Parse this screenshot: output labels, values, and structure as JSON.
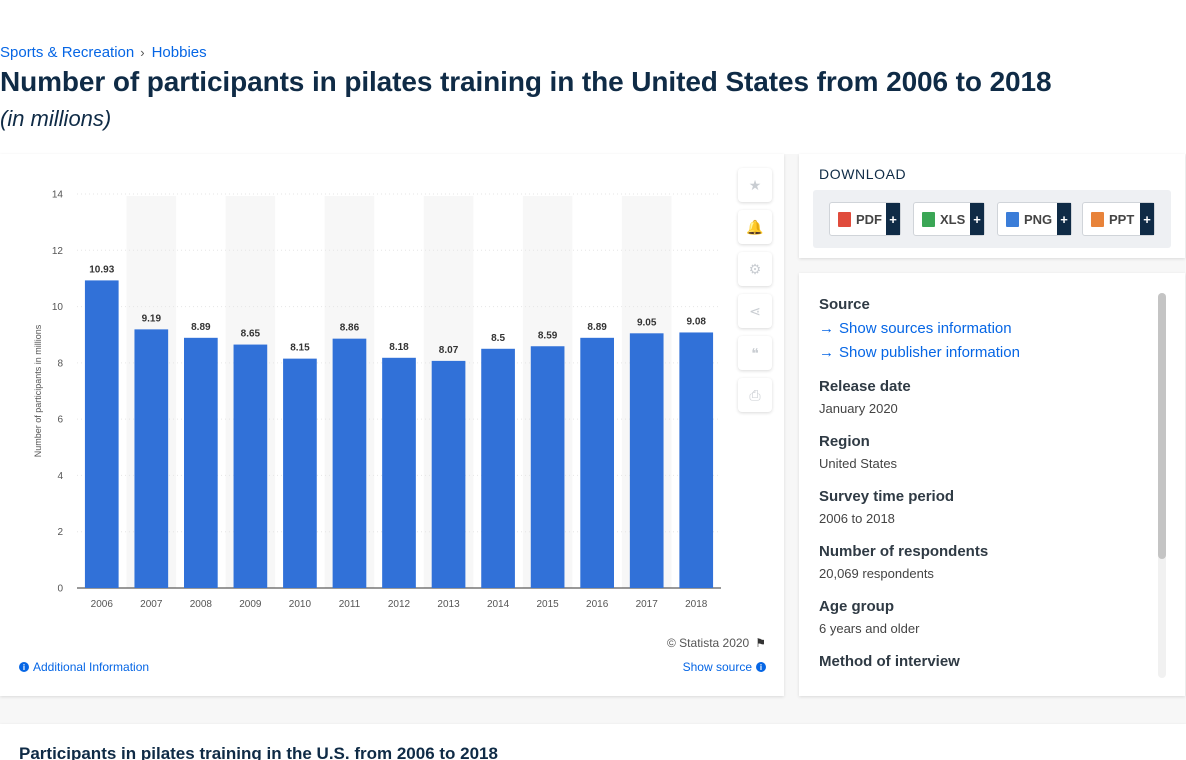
{
  "breadcrumb": {
    "items": [
      "Sports & Recreation",
      "Hobbies"
    ],
    "separator": "›"
  },
  "page": {
    "title": "Number of participants in pilates training in the United States from 2006 to 2018",
    "subtitle": "(in millions)"
  },
  "chart_data": {
    "type": "bar",
    "categories": [
      "2006",
      "2007",
      "2008",
      "2009",
      "2010",
      "2011",
      "2012",
      "2013",
      "2014",
      "2015",
      "2016",
      "2017",
      "2018"
    ],
    "values": [
      10.93,
      9.19,
      8.89,
      8.65,
      8.15,
      8.86,
      8.18,
      8.07,
      8.5,
      8.59,
      8.89,
      9.05,
      9.08
    ],
    "value_labels": [
      "10.93",
      "9.19",
      "8.89",
      "8.65",
      "8.15",
      "8.86",
      "8.18",
      "8.07",
      "8.5",
      "8.59",
      "8.89",
      "9.05",
      "9.08"
    ],
    "ylabel": "Number of participants in millions",
    "xlabel": "",
    "ylim": [
      0,
      14
    ],
    "yticks": [
      0,
      2,
      4,
      6,
      8,
      10,
      12,
      14
    ],
    "bar_color": "#3171d8",
    "grid": false
  },
  "chart_footer": {
    "credit": "© Statista 2020",
    "additional_info": "Additional Information",
    "show_source": "Show source"
  },
  "tools": [
    {
      "icon": "star-icon",
      "glyph": "★"
    },
    {
      "icon": "bell-icon",
      "glyph": "🔔"
    },
    {
      "icon": "gear-icon",
      "glyph": "⚙"
    },
    {
      "icon": "share-icon",
      "glyph": "⋖"
    },
    {
      "icon": "quote-icon",
      "glyph": "❝"
    },
    {
      "icon": "print-icon",
      "glyph": "⎙"
    }
  ],
  "download": {
    "title": "DOWNLOAD",
    "buttons": [
      {
        "label": "PDF",
        "icon": "pdf-file-icon",
        "color": "#e04b3c"
      },
      {
        "label": "XLS",
        "icon": "xls-file-icon",
        "color": "#3aa655"
      },
      {
        "label": "PNG",
        "icon": "png-file-icon",
        "color": "#3b7dd8"
      },
      {
        "label": "PPT",
        "icon": "ppt-file-icon",
        "color": "#e8833a"
      }
    ],
    "plus": "+"
  },
  "details": {
    "source_label": "Source",
    "show_sources": "Show sources information",
    "show_publisher": "Show publisher information",
    "release_date_label": "Release date",
    "release_date": "January 2020",
    "region_label": "Region",
    "region": "United States",
    "survey_period_label": "Survey time period",
    "survey_period": "2006 to 2018",
    "respondents_label": "Number of respondents",
    "respondents": "20,069 respondents",
    "age_group_label": "Age group",
    "age_group": "6 years and older",
    "method_label": "Method of interview"
  },
  "lower": {
    "title": "Participants in pilates training in the U.S. from 2006 to 2018"
  },
  "colors": {
    "accent": "#0666e5",
    "title": "#0f2b46",
    "bar": "#3171d8"
  }
}
